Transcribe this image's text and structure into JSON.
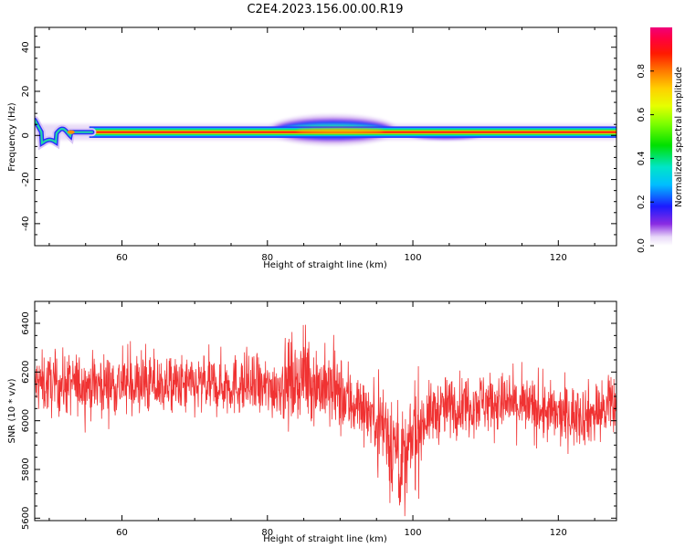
{
  "title": "C2E4.2023.156.00.00.R19",
  "chart_data": [
    {
      "type": "heatmap",
      "xlabel": "Height of straight line (km)",
      "ylabel": "Frequency (Hz)",
      "xlim": [
        48,
        128
      ],
      "ylim": [
        -50,
        49
      ],
      "x_ticks": [
        60,
        80,
        100,
        120
      ],
      "y_ticks": [
        -40,
        -20,
        0,
        20,
        40
      ],
      "grid": false,
      "colorbar": {
        "label": "Normalized spectral amplitude",
        "range": [
          0,
          1
        ],
        "ticks": [
          "0.0",
          "0.2",
          "0.4",
          "0.6",
          "0.8"
        ],
        "colormap": "gist_ncar-like (white-purple-blue-cyan-green-yellow-orange-red-magenta)"
      },
      "features": [
        {
          "name": "main band",
          "x_range": [
            48,
            128
          ],
          "frequency_hz": 1.5,
          "normalized_amplitude": 0.85
        },
        {
          "name": "broadened band",
          "x_range": [
            80,
            98
          ],
          "frequency_hz": 2.5,
          "normalized_amplitude": 0.55
        },
        {
          "name": "low-altitude wiggle",
          "x_range": [
            48,
            55
          ],
          "frequency_hz": -3,
          "normalized_amplitude": 0.35
        }
      ]
    },
    {
      "type": "line",
      "xlabel": "Height of straight line (km)",
      "ylabel": "SNR (10 * v/v)",
      "xlim": [
        48,
        128
      ],
      "ylim": [
        5590,
        6490
      ],
      "x_ticks": [
        60,
        80,
        100,
        120
      ],
      "y_ticks": [
        5600,
        5800,
        6000,
        6200,
        6400
      ],
      "color": "#f03232",
      "grid": false,
      "trend": [
        {
          "x": 48,
          "y": 6150
        },
        {
          "x": 60,
          "y": 6150
        },
        {
          "x": 70,
          "y": 6140
        },
        {
          "x": 75,
          "y": 6150
        },
        {
          "x": 80,
          "y": 6130
        },
        {
          "x": 85,
          "y": 6180
        },
        {
          "x": 90,
          "y": 6100
        },
        {
          "x": 93,
          "y": 6060
        },
        {
          "x": 96,
          "y": 5980
        },
        {
          "x": 98,
          "y": 5860
        },
        {
          "x": 99,
          "y": 5800
        },
        {
          "x": 100,
          "y": 5940
        },
        {
          "x": 102,
          "y": 6020
        },
        {
          "x": 105,
          "y": 6060
        },
        {
          "x": 110,
          "y": 6080
        },
        {
          "x": 115,
          "y": 6060
        },
        {
          "x": 120,
          "y": 6020
        },
        {
          "x": 125,
          "y": 6030
        },
        {
          "x": 128,
          "y": 6060
        }
      ],
      "noise_amplitude": 90
    }
  ]
}
